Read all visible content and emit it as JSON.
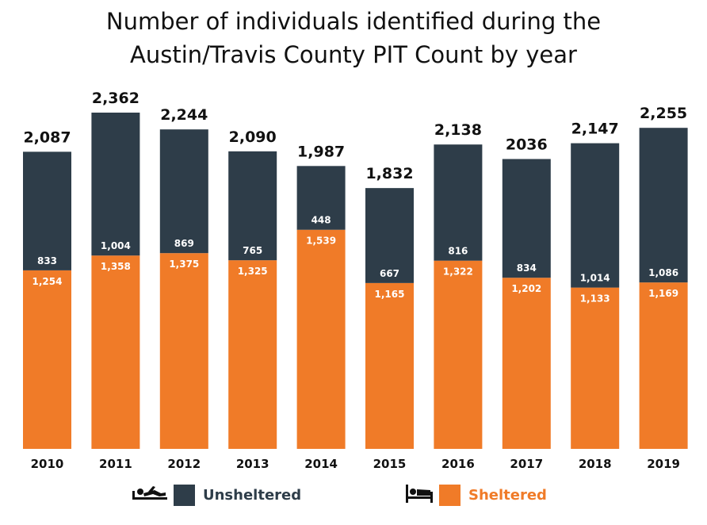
{
  "chart_data": {
    "type": "bar",
    "stacked": true,
    "title": "Number of individuals identified during the Austin/Travis County PIT Count by year",
    "title_lines": [
      "Number of individuals identified during the",
      "Austin/Travis County PIT Count by year"
    ],
    "categories": [
      "2010",
      "2011",
      "2012",
      "2013",
      "2014",
      "2015",
      "2016",
      "2017",
      "2018",
      "2019"
    ],
    "series": [
      {
        "name": "Sheltered",
        "color": "#f07b28",
        "values": [
          1254,
          1358,
          1375,
          1325,
          1539,
          1165,
          1322,
          1202,
          1133,
          1169
        ],
        "labels": [
          "1,254",
          "1,358",
          "1,375",
          "1,325",
          "1,539",
          "1,165",
          "1,322",
          "1,202",
          "1,133",
          "1,169"
        ]
      },
      {
        "name": "Unsheltered",
        "color": "#2e3d49",
        "values": [
          833,
          1004,
          869,
          765,
          448,
          667,
          816,
          834,
          1014,
          1086
        ],
        "labels": [
          "833",
          "1,004",
          "869",
          "765",
          "448",
          "667",
          "816",
          "834",
          "1,014",
          "1,086"
        ]
      }
    ],
    "totals": [
      2087,
      2362,
      2244,
      2090,
      1987,
      1832,
      2138,
      2036,
      2147,
      2255
    ],
    "total_labels": [
      "2,087",
      "2,362",
      "2,244",
      "2,090",
      "1,987",
      "1,832",
      "2,138",
      "2036",
      "2,147",
      "2,255"
    ],
    "ylim": [
      0,
      2362
    ],
    "grid": false,
    "legend": {
      "placement": "bottom",
      "items": [
        {
          "label": "Unsheltered",
          "color": "#2e3d49",
          "label_color": "#2e3d49",
          "icon": "person-lying-icon"
        },
        {
          "label": "Sheltered",
          "color": "#f07b28",
          "label_color": "#f07b28",
          "icon": "bed-icon"
        }
      ]
    }
  }
}
